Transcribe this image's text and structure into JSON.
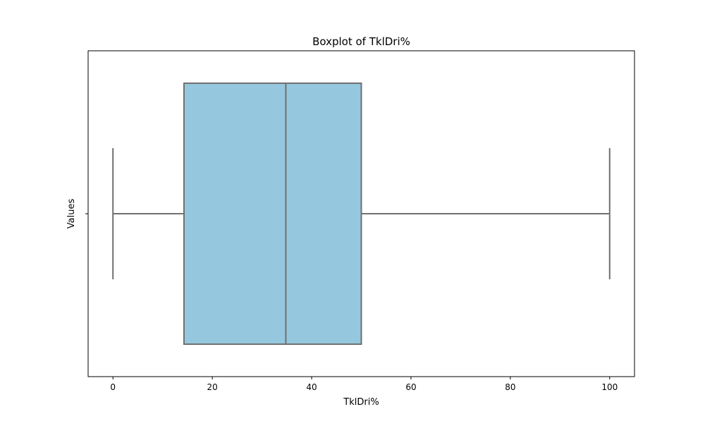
{
  "chart_data": {
    "type": "box",
    "orientation": "horizontal",
    "title": "Boxplot of TklDri%",
    "xlabel": "TklDri%",
    "ylabel": "Values",
    "xlim": [
      -5,
      105
    ],
    "x_ticks": [
      0,
      20,
      40,
      60,
      80,
      100
    ],
    "grid": false,
    "series": [
      {
        "min": 0,
        "q1": 14.3,
        "median": 34.8,
        "q3": 50,
        "max": 100,
        "fill_color": "#95c8de",
        "line_color": "#707070"
      }
    ]
  },
  "colors": {
    "box_fill": "#95c8de",
    "box_line": "#707070",
    "axes": "#000000",
    "background": "#ffffff"
  }
}
